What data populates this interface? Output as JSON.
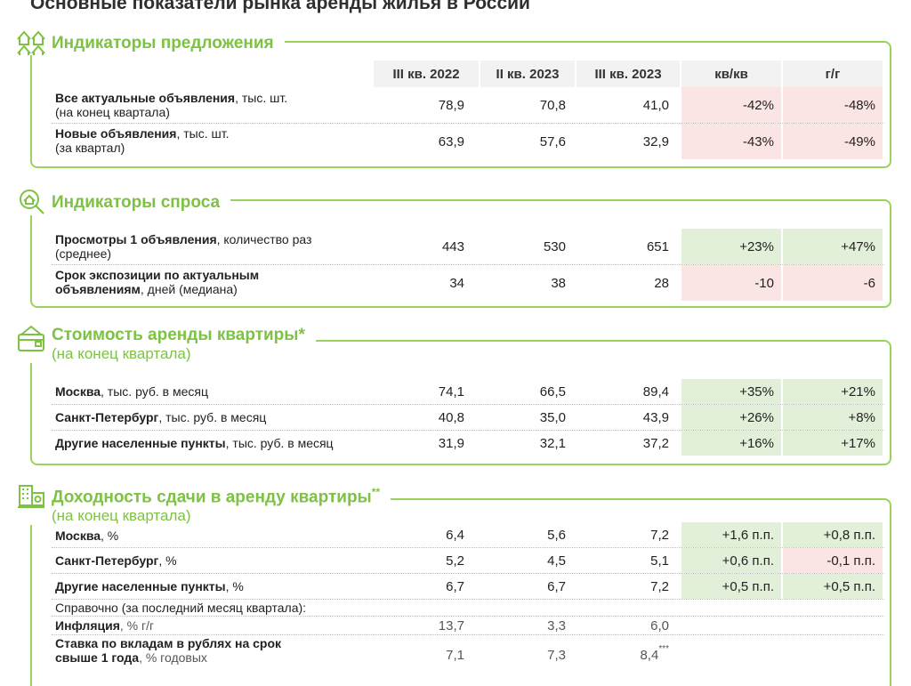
{
  "page_title": "Основные показатели рынка аренды жилья в России",
  "columns": [
    "III кв. 2022",
    "II кв. 2023",
    "III кв. 2023",
    "кв/кв",
    "г/г"
  ],
  "sections": [
    {
      "title": "Индикаторы предложения",
      "rows": [
        {
          "label_bold": "Все актуальные объявления",
          "label_rest": ", тыс. шт.",
          "label_line2": "(на конец квартала)",
          "values": [
            "78,9",
            "70,8",
            "41,0"
          ],
          "qq": "-42%",
          "yy": "-48%"
        },
        {
          "label_bold": "Новые объявления",
          "label_rest": ", тыс. шт.",
          "label_line2": "(за квартал)",
          "values": [
            "63,9",
            "57,6",
            "32,9"
          ],
          "qq": "-43%",
          "yy": "-49%"
        }
      ]
    },
    {
      "title": "Индикаторы спроса",
      "rows": [
        {
          "label_bold": "Просмотры 1 объявления",
          "label_rest": ", количество раз",
          "label_line2": "(среднее)",
          "values": [
            "443",
            "530",
            "651"
          ],
          "qq": "+23%",
          "yy": "+47%"
        },
        {
          "label_bold": "Срок экспозиции по актуальным",
          "label_bold2": "объявлениям",
          "label_rest2": ", дней (медиана)",
          "values": [
            "34",
            "38",
            "28"
          ],
          "qq": "-10",
          "yy": "-6"
        }
      ]
    },
    {
      "title": "Стоимость аренды квартиры",
      "title_mark": "*",
      "subtitle": "(на конец квартала)",
      "rows": [
        {
          "label_bold": "Москва",
          "label_rest": ", тыс. руб. в месяц",
          "values": [
            "74,1",
            "66,5",
            "89,4"
          ],
          "qq": "+35%",
          "yy": "+21%"
        },
        {
          "label_bold": "Санкт-Петербург",
          "label_rest": ", тыс. руб. в месяц",
          "values": [
            "40,8",
            "35,0",
            "43,9"
          ],
          "qq": "+26%",
          "yy": "+8%"
        },
        {
          "label_bold": "Другие населенные пункты",
          "label_rest": ", тыс. руб. в месяц",
          "values": [
            "31,9",
            "32,1",
            "37,2"
          ],
          "qq": "+16%",
          "yy": "+17%"
        }
      ]
    },
    {
      "title": "Доходность сдачи в аренду квартиры",
      "title_mark": "**",
      "subtitle": "(на конец квартала)",
      "rows": [
        {
          "label_bold": "Москва",
          "label_rest": ", %",
          "values": [
            "6,4",
            "5,6",
            "7,2"
          ],
          "qq": "+1,6 п.п.",
          "yy": "+0,8 п.п."
        },
        {
          "label_bold": "Санкт-Петербург",
          "label_rest": ", %",
          "values": [
            "5,2",
            "4,5",
            "5,1"
          ],
          "qq": "+0,6 п.п.",
          "yy": "-0,1 п.п."
        },
        {
          "label_bold": "Другие населенные пункты",
          "label_rest": ", %",
          "values": [
            "6,7",
            "6,7",
            "7,2"
          ],
          "qq": "+0,5 п.п.",
          "yy": "+0,5 п.п."
        }
      ],
      "reference_label": "Справочно (за последний месяц квартала):",
      "reference_rows": [
        {
          "label_bold": "Инфляция",
          "label_rest": ", % г/г",
          "values": [
            "13,7",
            "3,3",
            "6,0"
          ]
        },
        {
          "label_bold": "Ставка по вкладам в рублях на срок",
          "label_bold2": "свыше 1 года",
          "label_rest2": ", % годовых",
          "values": [
            "7,1",
            "7,3",
            "8,4"
          ],
          "last_mark": "***"
        }
      ]
    }
  ],
  "colors": {
    "accent": "#7dc242",
    "border": "#9bd35a",
    "positive_bg": "#e2efd9",
    "negative_bg": "#fbe4e4"
  }
}
